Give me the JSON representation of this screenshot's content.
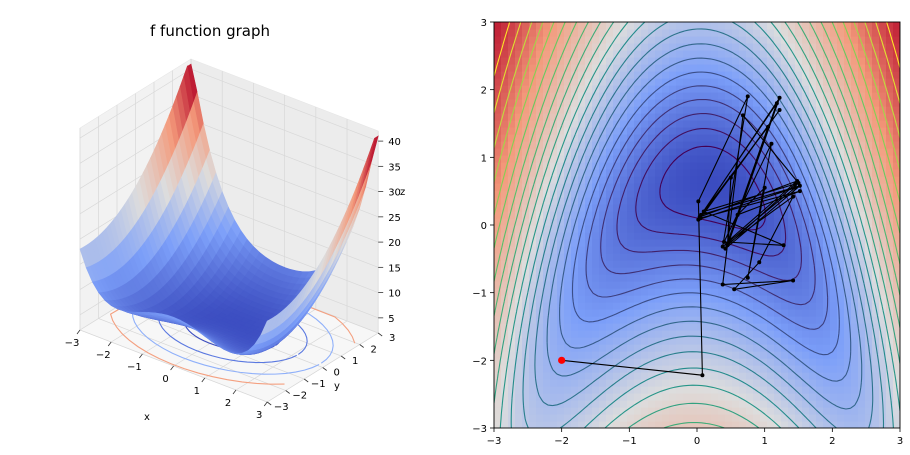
{
  "chart_data": [
    {
      "type": "surface3d",
      "title": "f function graph",
      "xlabel": "x",
      "ylabel": "y",
      "zlabel": "z",
      "x_ticks": [
        "−3",
        "−2",
        "−1",
        "0",
        "1",
        "2",
        "3"
      ],
      "y_ticks": [
        "−3",
        "−2",
        "−1",
        "0",
        "1",
        "2",
        "3"
      ],
      "z_ticks": [
        "5",
        "10",
        "15",
        "20",
        "25",
        "30",
        "35",
        "40"
      ],
      "xlim": [
        -3,
        3
      ],
      "ylim": [
        -3,
        3
      ],
      "zlim": [
        2,
        42
      ],
      "colormap": "coolwarm",
      "colors": {
        "low": "#3b4cc0",
        "mid": "#dddddd",
        "high": "#b40426"
      },
      "contour_projection": true,
      "grid": true
    },
    {
      "type": "contour_with_path",
      "x_ticks": [
        "−3",
        "−2",
        "−1",
        "0",
        "1",
        "2",
        "3"
      ],
      "y_ticks": [
        "−3",
        "−2",
        "−1",
        "0",
        "1",
        "2",
        "3"
      ],
      "xlim": [
        -3,
        3
      ],
      "ylim": [
        -3,
        3
      ],
      "background_colormap": "coolwarm",
      "line_colormap": "viridis",
      "start_point": {
        "x": -2,
        "y": -2,
        "color": "#ff0000"
      },
      "path_color": "#000000",
      "path": [
        [
          -2.0,
          -2.0
        ],
        [
          0.08,
          -2.22
        ],
        [
          0.02,
          0.35
        ],
        [
          0.75,
          1.9
        ],
        [
          0.38,
          -0.32
        ],
        [
          1.45,
          0.55
        ],
        [
          0.02,
          0.08
        ],
        [
          1.22,
          1.88
        ],
        [
          0.48,
          -0.22
        ],
        [
          1.48,
          0.65
        ],
        [
          0.04,
          0.12
        ],
        [
          1.05,
          1.45
        ],
        [
          0.42,
          -0.35
        ],
        [
          1.52,
          0.58
        ],
        [
          0.06,
          0.15
        ],
        [
          1.18,
          1.8
        ],
        [
          0.45,
          -0.28
        ],
        [
          1.42,
          0.42
        ],
        [
          0.92,
          -0.55
        ],
        [
          0.55,
          -0.95
        ],
        [
          1.42,
          -0.82
        ],
        [
          0.38,
          -0.88
        ],
        [
          0.68,
          1.62
        ],
        [
          1.5,
          0.62
        ],
        [
          0.1,
          0.2
        ],
        [
          1.28,
          -0.3
        ],
        [
          0.4,
          -0.25
        ],
        [
          1.1,
          1.2
        ],
        [
          0.75,
          -0.78
        ],
        [
          1.0,
          0.55
        ],
        [
          0.6,
          0.15
        ],
        [
          1.52,
          0.5
        ],
        [
          0.05,
          0.1
        ],
        [
          1.22,
          1.7
        ],
        [
          0.5,
          0.7
        ],
        [
          0.45,
          -0.3
        ],
        [
          1.45,
          0.6
        ]
      ]
    }
  ]
}
